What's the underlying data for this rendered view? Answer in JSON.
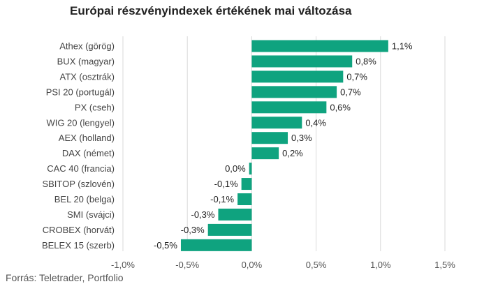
{
  "title": "Európai részvényindexek értékének mai változása",
  "source": "Forrás: Teletrader, Portfolio",
  "chart_data": {
    "type": "bar",
    "orientation": "horizontal",
    "categories": [
      "Athex (görög)",
      "BUX (magyar)",
      "ATX (osztrák)",
      "PSI 20 (portugál)",
      "PX (cseh)",
      "WIG 20 (lengyel)",
      "AEX (holland)",
      "DAX (német)",
      "CAC 40 (francia)",
      "SBITOP (szlovén)",
      "BEL 20 (belga)",
      "SMI (svájci)",
      "CROBEX (horvát)",
      "BELEX 15 (szerb)"
    ],
    "values": [
      1.06,
      0.78,
      0.71,
      0.66,
      0.58,
      0.39,
      0.28,
      0.21,
      -0.02,
      -0.08,
      -0.11,
      -0.26,
      -0.34,
      -0.55
    ],
    "value_labels": [
      "1,1%",
      "0,8%",
      "0,7%",
      "0,7%",
      "0,6%",
      "0,4%",
      "0,3%",
      "0,2%",
      "0,0%",
      "-0,1%",
      "-0,1%",
      "-0,3%",
      "-0,3%",
      "-0,5%"
    ],
    "xlim": [
      -1.0,
      1.5
    ],
    "xticks": [
      -1.0,
      -0.5,
      0.0,
      0.5,
      1.0,
      1.5
    ],
    "xtick_labels": [
      "-1,0%",
      "-0,5%",
      "0,0%",
      "0,5%",
      "1,0%",
      "1,5%"
    ],
    "bar_color": "#0fa37f",
    "grid": "vertical",
    "grid_color": "#d9d9d9",
    "legend": false
  }
}
